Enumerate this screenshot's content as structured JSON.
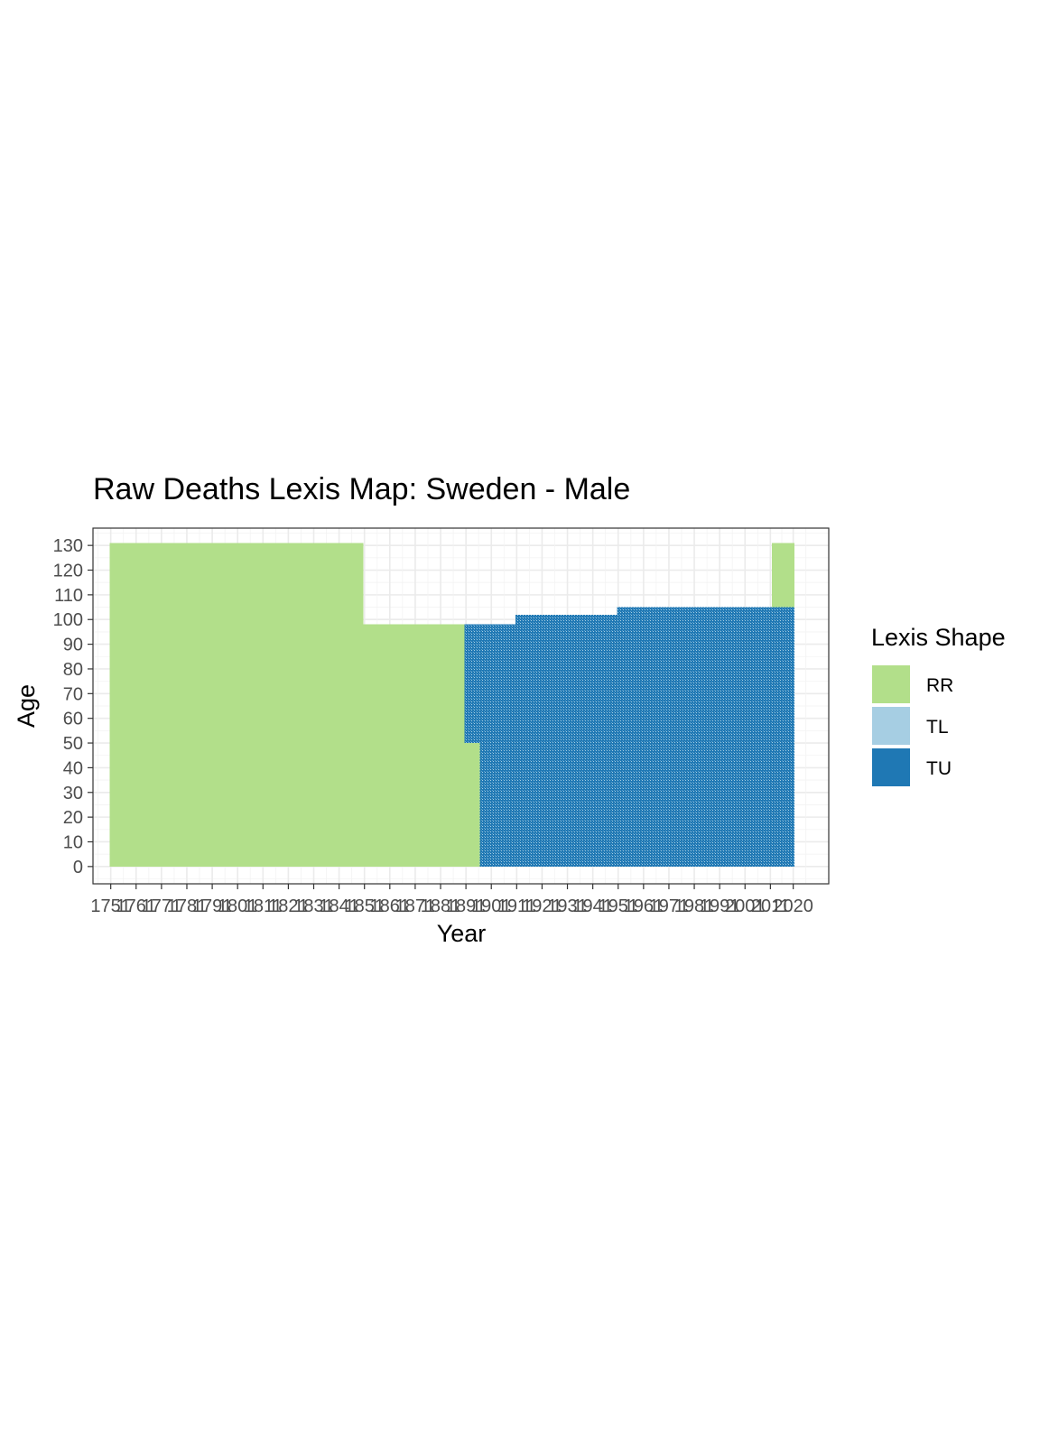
{
  "chart_data": {
    "type": "heatmap",
    "title": "Raw Deaths Lexis Map: Sweden - Male",
    "xlabel": "Year",
    "ylabel": "Age",
    "xlim": [
      1744,
      2034
    ],
    "ylim": [
      -7,
      137
    ],
    "x_ticks": [
      1751,
      1761,
      1771,
      1781,
      1791,
      1801,
      1811,
      1821,
      1831,
      1841,
      1851,
      1861,
      1871,
      1881,
      1891,
      1901,
      1911,
      1921,
      1931,
      1941,
      1951,
      1961,
      1971,
      1981,
      1991,
      2001,
      2011,
      2020
    ],
    "x_tick_labels": [
      "1751",
      "1761",
      "1771",
      "1781",
      "1791",
      "1801",
      "1811",
      "1821",
      "1831",
      "1841",
      "1851",
      "1861",
      "1871",
      "1881",
      "1891",
      "1901",
      "1911",
      "1921",
      "1931",
      "1941",
      "1951",
      "1961",
      "1971",
      "1981",
      "1991",
      "2001",
      "2011",
      "2020"
    ],
    "y_ticks": [
      0,
      10,
      20,
      30,
      40,
      50,
      60,
      70,
      80,
      90,
      100,
      110,
      120,
      130
    ],
    "grid": true,
    "legend_position": "right",
    "legend": {
      "title": "Lexis Shape",
      "entries": [
        {
          "key": "RR",
          "label": "RR",
          "color": "#b2df8a"
        },
        {
          "key": "TL",
          "label": "TL",
          "color": "#a6cee3"
        },
        {
          "key": "TU",
          "label": "TU",
          "color": "#1f78b4"
        }
      ]
    },
    "regions": [
      {
        "shape": "RR",
        "x": [
          1751,
          1819
        ],
        "y": [
          0,
          130
        ]
      },
      {
        "shape": "RR",
        "x": [
          1820,
          1828
        ],
        "y": [
          0,
          130
        ]
      },
      {
        "shape": "RR",
        "x": [
          1829,
          1830
        ],
        "y": [
          0,
          130
        ]
      },
      {
        "shape": "RR",
        "x": [
          1831,
          1832
        ],
        "y": [
          0,
          130
        ]
      },
      {
        "shape": "RR",
        "x": [
          1833,
          1834
        ],
        "y": [
          0,
          130
        ]
      },
      {
        "shape": "RR",
        "x": [
          1835,
          1836
        ],
        "y": [
          0,
          130
        ]
      },
      {
        "shape": "RR",
        "x": [
          1837,
          1837
        ],
        "y": [
          0,
          130
        ]
      },
      {
        "shape": "RR",
        "x": [
          1838,
          1838
        ],
        "y": [
          0,
          130
        ]
      },
      {
        "shape": "RR",
        "x": [
          1839,
          1840
        ],
        "y": [
          0,
          130
        ]
      },
      {
        "shape": "RR",
        "x": [
          1841,
          1850
        ],
        "y": [
          0,
          130
        ]
      },
      {
        "shape": "RR",
        "x": [
          1819,
          1841
        ],
        "y": [
          0,
          99
        ]
      },
      {
        "shape": "RR",
        "x": [
          1851,
          1890
        ],
        "y": [
          0,
          97
        ]
      },
      {
        "shape": "RR",
        "x": [
          1891,
          1896
        ],
        "y": [
          0,
          49
        ]
      },
      {
        "shape": "TU",
        "x": [
          1891,
          1896
        ],
        "y": [
          50,
          97
        ]
      },
      {
        "shape": "TU",
        "x": [
          1897,
          2020
        ],
        "y": [
          0,
          97
        ]
      },
      {
        "shape": "TU",
        "x": [
          1911,
          2020
        ],
        "y": [
          98,
          101
        ]
      },
      {
        "shape": "TU",
        "x": [
          1951,
          2020
        ],
        "y": [
          102,
          104
        ]
      },
      {
        "shape": "RR",
        "x": [
          2012,
          2020
        ],
        "y": [
          105,
          130
        ]
      }
    ]
  }
}
